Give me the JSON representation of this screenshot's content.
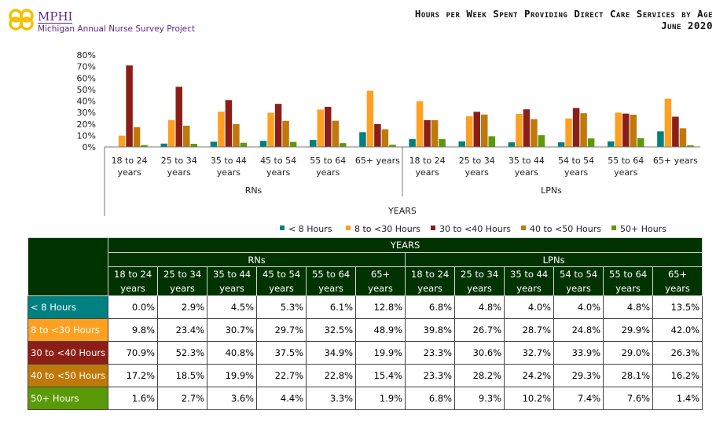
{
  "header": {
    "logo": {
      "name": "MPHI",
      "subtitle": "Michigan Annual Nurse Survey Project"
    },
    "title_line1": "Hours per Week Spent Providing Direct Care Services by Age",
    "title_line2": "June 2020"
  },
  "chart_data": {
    "type": "bar",
    "title": "Hours per Week Spent Providing Direct Care Services by Age",
    "xlabel": "YEARS",
    "ylabel": "",
    "ylim": [
      0,
      80
    ],
    "yticks": [
      "0%",
      "10%",
      "20%",
      "30%",
      "40%",
      "50%",
      "60%",
      "70%",
      "80%"
    ],
    "groups": [
      {
        "name": "RNs",
        "categories": [
          "18 to 24 years",
          "25 to 34 years",
          "35 to 44 years",
          "45 to 54 years",
          "55 to 64 years",
          "65+ years"
        ]
      },
      {
        "name": "LPNs",
        "categories": [
          "18 to 24 years",
          "25 to 34 years",
          "35 to 44 years",
          "54 to 54 years",
          "55 to 64 years",
          "65+ years"
        ]
      }
    ],
    "categories_line1": [
      "18 to 24",
      "25 to 34",
      "35 to 44",
      "45 to 54",
      "55 to 64",
      "65+ years",
      "18 to 24",
      "25 to 34",
      "35 to 44",
      "54 to 54",
      "55 to 64",
      "65+ years"
    ],
    "categories_line2": [
      "years",
      "years",
      "years",
      "years",
      "years",
      "",
      "years",
      "years",
      "years",
      "years",
      "years",
      ""
    ],
    "legend_position": "bottom",
    "series": [
      {
        "name": "< 8 Hours",
        "color": "#008080",
        "values": [
          0.0,
          2.9,
          4.5,
          5.3,
          6.1,
          12.8,
          6.8,
          4.8,
          4.0,
          4.0,
          4.8,
          13.5
        ],
        "labels": [
          "0.0%",
          "2.9%",
          "4.5%",
          "5.3%",
          "6.1%",
          "12.8%",
          "6.8%",
          "4.8%",
          "4.0%",
          "4.0%",
          "4.8%",
          "13.5%"
        ]
      },
      {
        "name": "8 to <30 Hours",
        "color": "#FFA020",
        "values": [
          9.8,
          23.4,
          30.7,
          29.7,
          32.5,
          48.9,
          39.8,
          26.7,
          28.7,
          24.8,
          29.9,
          42.0
        ],
        "labels": [
          "9.8%",
          "23.4%",
          "30.7%",
          "29.7%",
          "32.5%",
          "48.9%",
          "39.8%",
          "26.7%",
          "28.7%",
          "24.8%",
          "29.9%",
          "42.0%"
        ]
      },
      {
        "name": "30 to <40 Hours",
        "color": "#8B1F18",
        "values": [
          70.9,
          52.3,
          40.8,
          37.5,
          34.9,
          19.9,
          23.3,
          30.6,
          32.7,
          33.9,
          29.0,
          26.3
        ],
        "labels": [
          "70.9%",
          "52.3%",
          "40.8%",
          "37.5%",
          "34.9%",
          "19.9%",
          "23.3%",
          "30.6%",
          "32.7%",
          "33.9%",
          "29.0%",
          "26.3%"
        ]
      },
      {
        "name": "40 to <50 Hours",
        "color": "#C0780A",
        "values": [
          17.2,
          18.5,
          19.9,
          22.7,
          22.8,
          15.4,
          23.3,
          28.2,
          24.2,
          29.3,
          28.1,
          16.2
        ],
        "labels": [
          "17.2%",
          "18.5%",
          "19.9%",
          "22.7%",
          "22.8%",
          "15.4%",
          "23.3%",
          "28.2%",
          "24.2%",
          "29.3%",
          "28.1%",
          "16.2%"
        ]
      },
      {
        "name": "50+ Hours",
        "color": "#5A9A08",
        "values": [
          1.6,
          2.7,
          3.6,
          4.4,
          3.3,
          1.9,
          6.8,
          9.3,
          10.2,
          7.4,
          7.6,
          1.4
        ],
        "labels": [
          "1.6%",
          "2.7%",
          "3.6%",
          "4.4%",
          "3.3%",
          "1.9%",
          "6.8%",
          "9.3%",
          "10.2%",
          "7.4%",
          "7.6%",
          "1.4%"
        ]
      }
    ]
  },
  "table": {
    "years_label": "YEARS",
    "header_bg": "#003300"
  }
}
